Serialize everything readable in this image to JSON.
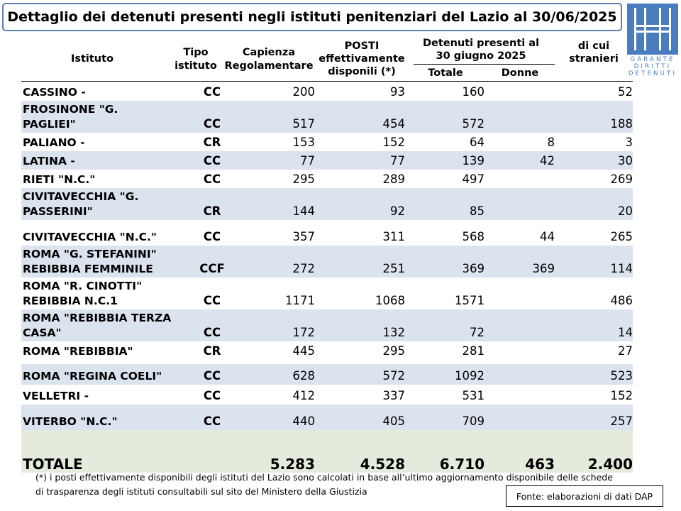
{
  "title": "Dettaglio dei detenuti presenti negli istituti penitenziari del Lazio al  30/06/2025",
  "logo": {
    "line1": "GARANTE",
    "line2": "DIRITTI",
    "line3": "DETENUTI"
  },
  "headers": {
    "istituto": "Istituto",
    "tipo_line1": "Tipo",
    "tipo_line2": "istituto",
    "capienza_line1": "Capienza",
    "capienza_line2": "Regolamentare",
    "posti_line1": "POSTI",
    "posti_line2": "effettivamente",
    "posti_line3": "disponili (*)",
    "detenuti_line1": "Detenuti presenti al",
    "detenuti_line2": "30 giugno 2025",
    "totale": "Totale",
    "donne": "Donne",
    "stranieri_line1": "di cui",
    "stranieri_line2": "stranieri"
  },
  "rows": [
    {
      "name1": "CASSINO -",
      "name2": "",
      "tipo": "CC",
      "capienza": "200",
      "posti": "93",
      "totale": "160",
      "donne": "",
      "stranieri": "52"
    },
    {
      "name1": "FROSINONE \"G.",
      "name2": "PAGLIEI\"",
      "tipo": "CC",
      "capienza": "517",
      "posti": "454",
      "totale": "572",
      "donne": "",
      "stranieri": "188"
    },
    {
      "name1": "PALIANO -",
      "name2": "",
      "tipo": "CR",
      "capienza": "153",
      "posti": "152",
      "totale": "64",
      "donne": "8",
      "stranieri": "3"
    },
    {
      "name1": "LATINA -",
      "name2": "",
      "tipo": "CC",
      "capienza": "77",
      "posti": "77",
      "totale": "139",
      "donne": "42",
      "stranieri": "30"
    },
    {
      "name1": "RIETI \"N.C.\"",
      "name2": "",
      "tipo": "CC",
      "capienza": "295",
      "posti": "289",
      "totale": "497",
      "donne": "",
      "stranieri": "269"
    },
    {
      "name1": "CIVITAVECCHIA \"G.",
      "name2": "PASSERINI\"",
      "tipo": "CR",
      "capienza": "144",
      "posti": "92",
      "totale": "85",
      "donne": "",
      "stranieri": "20"
    },
    {
      "name1": "CIVITAVECCHIA \"N.C.\"",
      "name2": "",
      "tipo": "CC",
      "capienza": "357",
      "posti": "311",
      "totale": "568",
      "donne": "44",
      "stranieri": "265"
    },
    {
      "name1": "ROMA \"G. STEFANINI\"",
      "name2": "REBIBBIA FEMMINILE",
      "tipo": "CCF",
      "capienza": "272",
      "posti": "251",
      "totale": "369",
      "donne": "369",
      "stranieri": "114"
    },
    {
      "name1": "ROMA \"R. CINOTTI\"",
      "name2": "REBIBBIA N.C.1",
      "tipo": "CC",
      "capienza": "1171",
      "posti": "1068",
      "totale": "1571",
      "donne": "",
      "stranieri": "486"
    },
    {
      "name1": "ROMA \"REBIBBIA TERZA",
      "name2": "CASA\"",
      "tipo": "CC",
      "capienza": "172",
      "posti": "132",
      "totale": "72",
      "donne": "",
      "stranieri": "14"
    },
    {
      "name1": "ROMA \"REBIBBIA\"",
      "name2": "",
      "tipo": "CR",
      "capienza": "445",
      "posti": "295",
      "totale": "281",
      "donne": "",
      "stranieri": "27"
    },
    {
      "name1": "ROMA \"REGINA COELI\"",
      "name2": "",
      "tipo": "CC",
      "capienza": "628",
      "posti": "572",
      "totale": "1092",
      "donne": "",
      "stranieri": "523"
    },
    {
      "name1": "VELLETRI -",
      "name2": "",
      "tipo": "CC",
      "capienza": "412",
      "posti": "337",
      "totale": "531",
      "donne": "",
      "stranieri": "152"
    },
    {
      "name1": "VITERBO \"N.C.\"",
      "name2": "",
      "tipo": "CC",
      "capienza": "440",
      "posti": "405",
      "totale": "709",
      "donne": "",
      "stranieri": "257"
    }
  ],
  "totals": {
    "label": "TOTALE",
    "capienza": "5.283",
    "posti": "4.528",
    "totale": "6.710",
    "donne": "463",
    "stranieri": "2.400"
  },
  "footnote_line1": "(*) i posti effettivamente disponibili degli istituti del Lazio sono calcolati in base all’ultimo aggiornamento disponibile delle schede",
  "footnote_line2": "di trasparenza degli istituti consultabili sul sito del Ministero della Giustizia",
  "fonte": "Fonte: elaborazioni di dati DAP"
}
